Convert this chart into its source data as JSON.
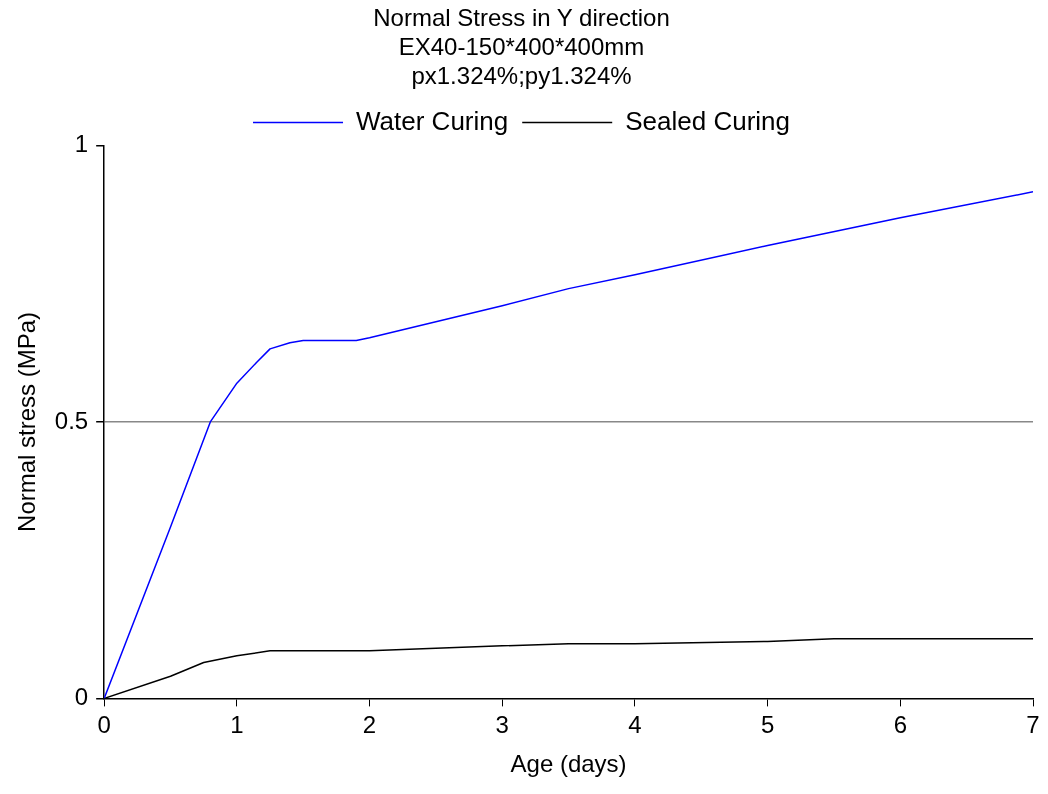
{
  "chart_data": {
    "type": "line",
    "title": "Normal Stress in Y direction",
    "subtitle": "EX40-150*400*400mm\npx1.324%;py1.324%",
    "xlabel": "Age (days)",
    "ylabel": "Normal stress (MPa)",
    "xlim": [
      0,
      7
    ],
    "xticks": [
      0,
      1,
      2,
      3,
      4,
      5,
      6,
      7
    ],
    "ylim": [
      0,
      1
    ],
    "yticks": [
      0,
      0.5,
      1
    ],
    "grid": "y",
    "legend": "top",
    "marker": "none",
    "line_style": "solid",
    "series": [
      {
        "name": "Water Curing",
        "color": "#0000ff",
        "x": [
          0,
          0.5,
          0.8,
          1,
          1.15,
          1.25,
          1.4,
          1.5,
          1.9,
          2,
          3,
          3.5,
          4,
          5,
          6,
          7
        ],
        "values": [
          0,
          0.31,
          0.5,
          0.57,
          0.608,
          0.632,
          0.643,
          0.647,
          0.647,
          0.652,
          0.71,
          0.741,
          0.766,
          0.819,
          0.869,
          0.916
        ]
      },
      {
        "name": "Sealed Curing",
        "color": "#000000",
        "x": [
          0,
          0.5,
          0.75,
          1,
          1.25,
          2,
          3,
          3.5,
          4,
          5,
          5.5,
          7
        ],
        "values": [
          0,
          0.04,
          0.065,
          0.077,
          0.086,
          0.086,
          0.095,
          0.099,
          0.099,
          0.103,
          0.108,
          0.108
        ]
      }
    ]
  }
}
